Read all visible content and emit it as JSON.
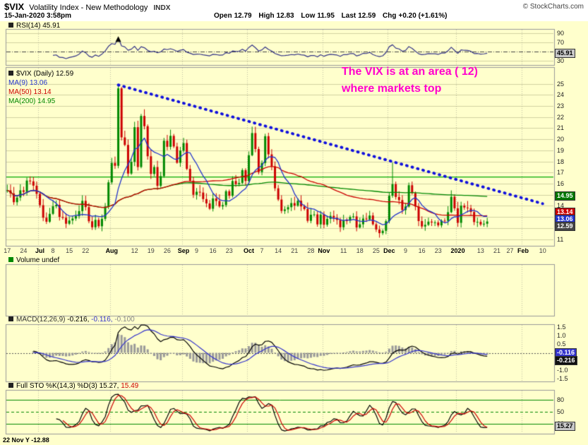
{
  "header": {
    "symbol": "$VIX",
    "name": "Volatility Index - New Methodology",
    "exchange": "INDX",
    "copyright": "© StockCharts.com",
    "datetime": "15-Jan-2020 3:58pm",
    "quote": {
      "open_label": "Open",
      "open": "12.79",
      "high_label": "High",
      "high": "12.83",
      "low_label": "Low",
      "low": "11.95",
      "last_label": "Last",
      "last": "12.59",
      "chg_label": "Chg",
      "chg": "+0.20 (+1.61%)"
    }
  },
  "panels": {
    "rsi_label": "RSI(14) 45.91",
    "volume_label": "Volume undef",
    "legend": {
      "title": "$VIX (Daily) 12.59",
      "ma9": "MA(9) 13.06",
      "ma50": "MA(50) 13.14",
      "ma200": "MA(200) 14.95"
    },
    "macd": {
      "name": "MACD(12,26,9)",
      "macd_value": "-0.216,",
      "signal_value": "-0.116,",
      "hist_value": "-0.100"
    },
    "sto": {
      "name": "Full STO %K(14,3) %D(3)",
      "k_value": "15.27,",
      "d_value": "15.49"
    }
  },
  "annotation": {
    "line1": "The VIX is at an area ( 12)",
    "line2": "where markets top"
  },
  "bottom_partial": "22 Nov Y -12.88",
  "value_boxes": [
    {
      "panel": "rsi",
      "value": 45.91,
      "text": "45.91",
      "bg": "#C8C8C8",
      "fg": "#000000"
    },
    {
      "panel": "main",
      "value": 14.95,
      "text": "14.95",
      "bg": "#007700",
      "fg": "#FFFFFF"
    },
    {
      "panel": "main",
      "value": 13.45,
      "text": "13.14",
      "bg": "#CC0000",
      "fg": "#FFFFFF"
    },
    {
      "panel": "main",
      "value": 12.82,
      "text": "13.06",
      "bg": "#2233CC",
      "fg": "#FFFFFF"
    },
    {
      "panel": "main",
      "value": 12.18,
      "text": "12.59",
      "bg": "#444444",
      "fg": "#FFFFFF"
    },
    {
      "panel": "macd",
      "value": 0.02,
      "text": "-0.116",
      "bg": "#3333CC",
      "fg": "#FFFFFF"
    },
    {
      "panel": "macd",
      "value": -0.42,
      "text": "-0.216",
      "bg": "#111111",
      "fg": "#FFFFFF"
    },
    {
      "panel": "sto",
      "value": 15.27,
      "text": "15.27",
      "bg": "#C8C8C8",
      "fg": "#000000"
    }
  ],
  "chart_data": {
    "type": "candlestick",
    "symbol": "$VIX (Daily)",
    "timeframe": "Jun 2019 - Jan 2020, daily bars",
    "slots": 168,
    "closes": [
      15.4,
      15.12,
      14.33,
      14.75,
      15.4,
      15.26,
      16.28,
      16.21,
      15.82,
      15.08,
      14.06,
      12.93,
      12.57,
      13.28,
      13.96,
      14.09,
      13.01,
      12.93,
      12.39,
      12.68,
      12.86,
      13.08,
      13.53,
      14.45,
      13.89,
      12.61,
      12.07,
      12.74,
      12.16,
      12.83,
      13.94,
      16.12,
      17.87,
      17.61,
      24.59,
      20.17,
      19.49,
      16.91,
      17.97,
      21.09,
      17.5,
      22.1,
      21.18,
      18.47,
      16.88,
      17.5,
      15.8,
      16.68,
      19.87,
      19.32,
      20.31,
      19.35,
      17.88,
      18.98,
      19.66,
      17.33,
      16.27,
      15.0,
      15.27,
      15.2,
      14.61,
      14.22,
      13.74,
      14.67,
      14.44,
      13.95,
      14.07,
      15.32,
      14.91,
      16.24,
      15.96,
      16.07,
      17.22,
      16.24,
      18.56,
      20.56,
      19.12,
      17.04,
      17.86,
      20.28,
      18.64,
      17.57,
      15.58,
      14.57,
      13.54,
      13.68,
      13.88,
      14.25,
      14.02,
      14.46,
      13.95,
      13.71,
      12.65,
      13.2,
      13.23,
      12.33,
      13.22,
      12.3,
      12.83,
      13.1,
      12.92,
      12.73,
      12.07,
      12.69,
      12.68,
      13.0,
      13.05,
      12.05,
      12.34,
      12.86,
      12.78,
      13.13,
      12.34,
      11.87,
      11.54,
      11.75,
      12.62,
      14.91,
      15.96,
      14.8,
      14.52,
      13.62,
      13.94,
      15.86,
      15.15,
      13.94,
      12.63,
      12.14,
      12.29,
      12.58,
      12.5,
      12.51,
      12.24,
      12.67,
      12.65,
      13.43,
      14.82,
      13.78,
      12.47,
      14.02,
      13.85,
      13.79,
      13.45,
      12.54,
      12.56,
      12.32,
      12.39,
      12.59
    ],
    "last_ohlc": {
      "open": 12.79,
      "high": 12.83,
      "low": 11.95,
      "close": 12.59,
      "change": "+0.20 (+1.61%)"
    },
    "wick_overrides": {
      "34": 24.8,
      "118": 17.9
    },
    "month_ticks": [
      10,
      32,
      54,
      74,
      97,
      117,
      138,
      158
    ],
    "month_labels": [
      "Jul",
      "Aug",
      "Sep",
      "Oct",
      "Nov",
      "Dec",
      "2020",
      "Feb"
    ],
    "x_ticks": [
      [
        "17",
        0
      ],
      [
        "24",
        5
      ],
      [
        "Jul",
        10
      ],
      [
        "8",
        14
      ],
      [
        "15",
        19
      ],
      [
        "22",
        24
      ],
      [
        "Aug",
        32
      ],
      [
        "12",
        39
      ],
      [
        "19",
        44
      ],
      [
        "26",
        49
      ],
      [
        "Sep",
        54
      ],
      [
        "9",
        58
      ],
      [
        "16",
        63
      ],
      [
        "23",
        68
      ],
      [
        "Oct",
        74
      ],
      [
        "7",
        78
      ],
      [
        "14",
        83
      ],
      [
        "21",
        88
      ],
      [
        "28",
        93
      ],
      [
        "Nov",
        97
      ],
      [
        "11",
        103
      ],
      [
        "18",
        108
      ],
      [
        "25",
        113
      ],
      [
        "Dec",
        117
      ],
      [
        "9",
        122
      ],
      [
        "16",
        127
      ],
      [
        "23",
        132
      ],
      [
        "2020",
        138
      ],
      [
        "13",
        145
      ],
      [
        "21",
        150
      ],
      [
        "27",
        154
      ],
      [
        "Feb",
        158
      ],
      [
        "10",
        164
      ]
    ],
    "price_ticks": [
      25,
      24,
      23,
      22,
      21,
      20,
      19,
      18,
      17,
      16,
      15,
      14,
      13,
      12,
      11
    ],
    "rsi_ticks": [
      90,
      70,
      50,
      30
    ],
    "macd_ticks": [
      1.5,
      1.0,
      0.5,
      -0.5,
      -1.0,
      -1.5
    ],
    "sto_ticks": [
      80,
      50,
      20
    ],
    "overlays": {
      "ma9_last": 13.06,
      "ma50_last": 13.14,
      "ma200_last": 14.95
    },
    "indicators": {
      "rsi_period": 14,
      "rsi_last": 45.91,
      "macd_params": "12,26,9",
      "macd_last": -0.216,
      "macd_signal_last": -0.116,
      "macd_hist_last": -0.1,
      "sto_params": "%K(14,3) %D(3)",
      "sto_k_last": 15.27,
      "sto_d_last": 15.49
    },
    "trendline": {
      "from_index": 34,
      "from_value": 24.9,
      "to_index": 164,
      "to_value": 14.2
    },
    "hline_value": 16.6,
    "rsi_marker": {
      "index": 34,
      "value": 76
    },
    "colors": {
      "background": "#FFFFCC",
      "up": "#008800",
      "down": "#CC0000",
      "ma9": "#2233CC",
      "ma50": "#CC0000",
      "ma200": "#008800",
      "rsi": "#333388",
      "macd_line": "#000000",
      "macd_signal": "#3333CC",
      "macd_hist": "#999999",
      "sto_k": "#000000",
      "sto_d": "#CC0000",
      "trendline": "#1111DD",
      "annotation": "#FF00CC",
      "grid": "#C8C8A0",
      "panel_border": "#999999"
    }
  }
}
